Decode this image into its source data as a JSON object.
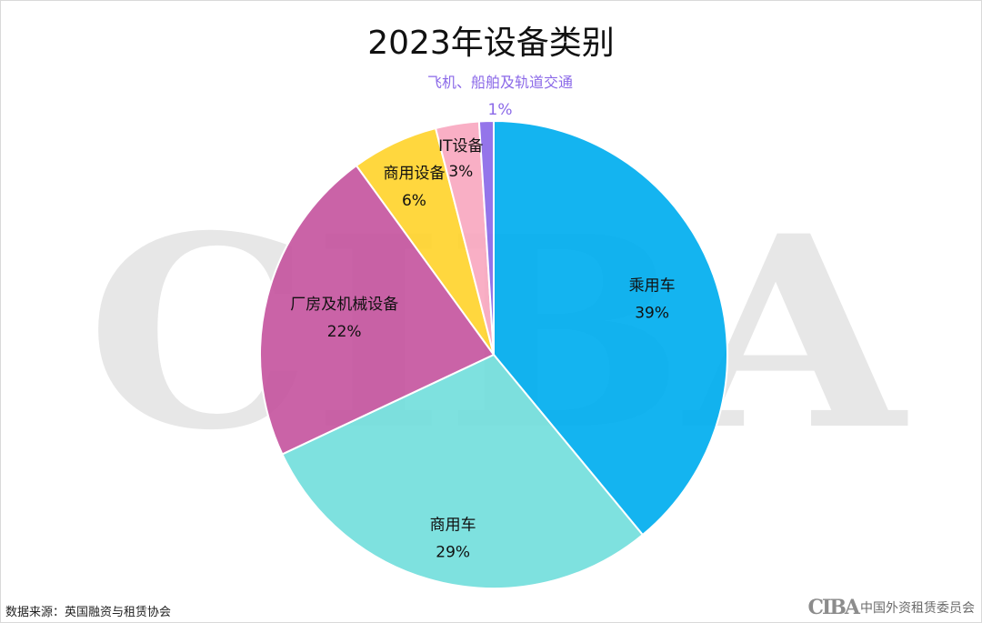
{
  "chart_data": {
    "type": "pie",
    "title": "2023年设备类别",
    "slices": [
      {
        "label": "乘用车",
        "value": 39,
        "value_label": "39%",
        "color": "#00AEEF"
      },
      {
        "label": "商用车",
        "value": 29,
        "value_label": "29%",
        "color": "#73DEDC"
      },
      {
        "label": "厂房及机械设备",
        "value": 22,
        "value_label": "22%",
        "color": "#C6569F"
      },
      {
        "label": "商用设备",
        "value": 6,
        "value_label": "6%",
        "color": "#FFD42E"
      },
      {
        "label": "IT设备",
        "value": 3,
        "value_label": "3%",
        "color": "#F9A8C0"
      },
      {
        "label": "飞机、船舶及轨道交通",
        "value": 1,
        "value_label": "1%",
        "color": "#8B69E8"
      }
    ],
    "legend": "none"
  },
  "footer": {
    "source": "数据来源：英国融资与租赁协会",
    "watermark_text": "CIBA",
    "logo_text": "CIBA",
    "org_name": "中国外资租赁委员会"
  }
}
